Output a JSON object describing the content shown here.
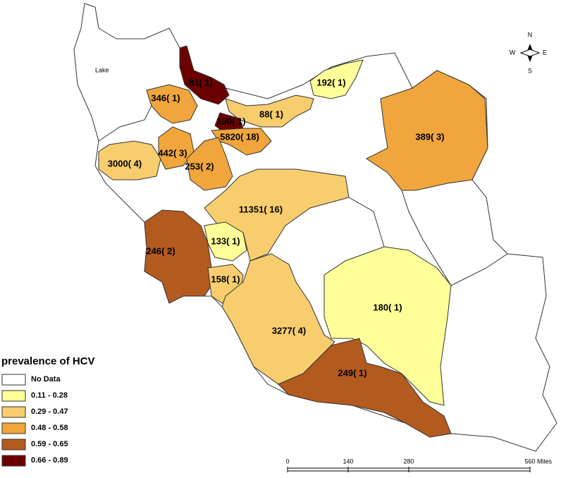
{
  "title_lake": "Lake",
  "regions": [
    {
      "label": "81( 1)",
      "color": "#6b0000"
    },
    {
      "label": "192( 1)",
      "color": "#ffff99"
    },
    {
      "label": "346( 1)",
      "color": "#f0a63c"
    },
    {
      "label": "88( 1)",
      "color": "#f7cd6e"
    },
    {
      "label": "150( 1)",
      "color": "#6b0000"
    },
    {
      "label": "5820( 18)",
      "color": "#f0a63c"
    },
    {
      "label": "389( 3)",
      "color": "#f0a63c"
    },
    {
      "label": "3000( 4)",
      "color": "#f7cd6e"
    },
    {
      "label": "442( 3)",
      "color": "#f0a63c"
    },
    {
      "label": "253( 2)",
      "color": "#f0a63c"
    },
    {
      "label": "11351( 16)",
      "color": "#f7cd6e"
    },
    {
      "label": "133( 1)",
      "color": "#ffff99"
    },
    {
      "label": "246( 2)",
      "color": "#b35a1f"
    },
    {
      "label": "158( 1)",
      "color": "#f7cd6e"
    },
    {
      "label": "3277( 4)",
      "color": "#f7cd6e"
    },
    {
      "label": "180( 1)",
      "color": "#ffff99"
    },
    {
      "label": "249( 1)",
      "color": "#b35a1f"
    }
  ],
  "legend": {
    "title": "prevalence of HCV",
    "items": [
      {
        "label": "No Data",
        "color": "#ffffff"
      },
      {
        "label": "0.11 - 0.28",
        "color": "#ffff99"
      },
      {
        "label": "0.29 - 0.47",
        "color": "#f7cd6e"
      },
      {
        "label": "0.48 - 0.58",
        "color": "#f0a63c"
      },
      {
        "label": "0.59 - 0.65",
        "color": "#b35a1f"
      },
      {
        "label": "0.66 - 0.89",
        "color": "#6b0000"
      }
    ]
  },
  "scale_bar": {
    "ticks": [
      "0",
      "140",
      "280",
      "560"
    ],
    "unit": "Miles"
  },
  "compass": {
    "n": "N",
    "e": "E",
    "s": "S",
    "w": "W"
  }
}
